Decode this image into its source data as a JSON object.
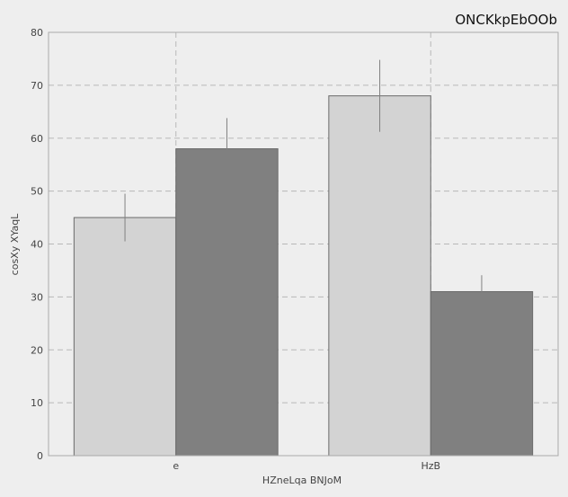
{
  "chart_data": {
    "type": "bar",
    "title": "ONCKkpEbOOb",
    "xlabel": "HZneLqa BNJoM",
    "ylabel": "cosXy XYaqL",
    "categories": [
      "e",
      "HzB"
    ],
    "series": [
      {
        "values": [
          45,
          68
        ],
        "errors": [
          4.5,
          6.8
        ],
        "color": "#d3d3d3"
      },
      {
        "values": [
          58,
          31
        ],
        "errors": [
          5.8,
          3.1
        ],
        "color": "#808080"
      }
    ],
    "ylim": [
      0,
      80
    ],
    "yticks": [
      0,
      10,
      20,
      30,
      40,
      50,
      60,
      70,
      80
    ],
    "grid": true,
    "legend": "none"
  }
}
